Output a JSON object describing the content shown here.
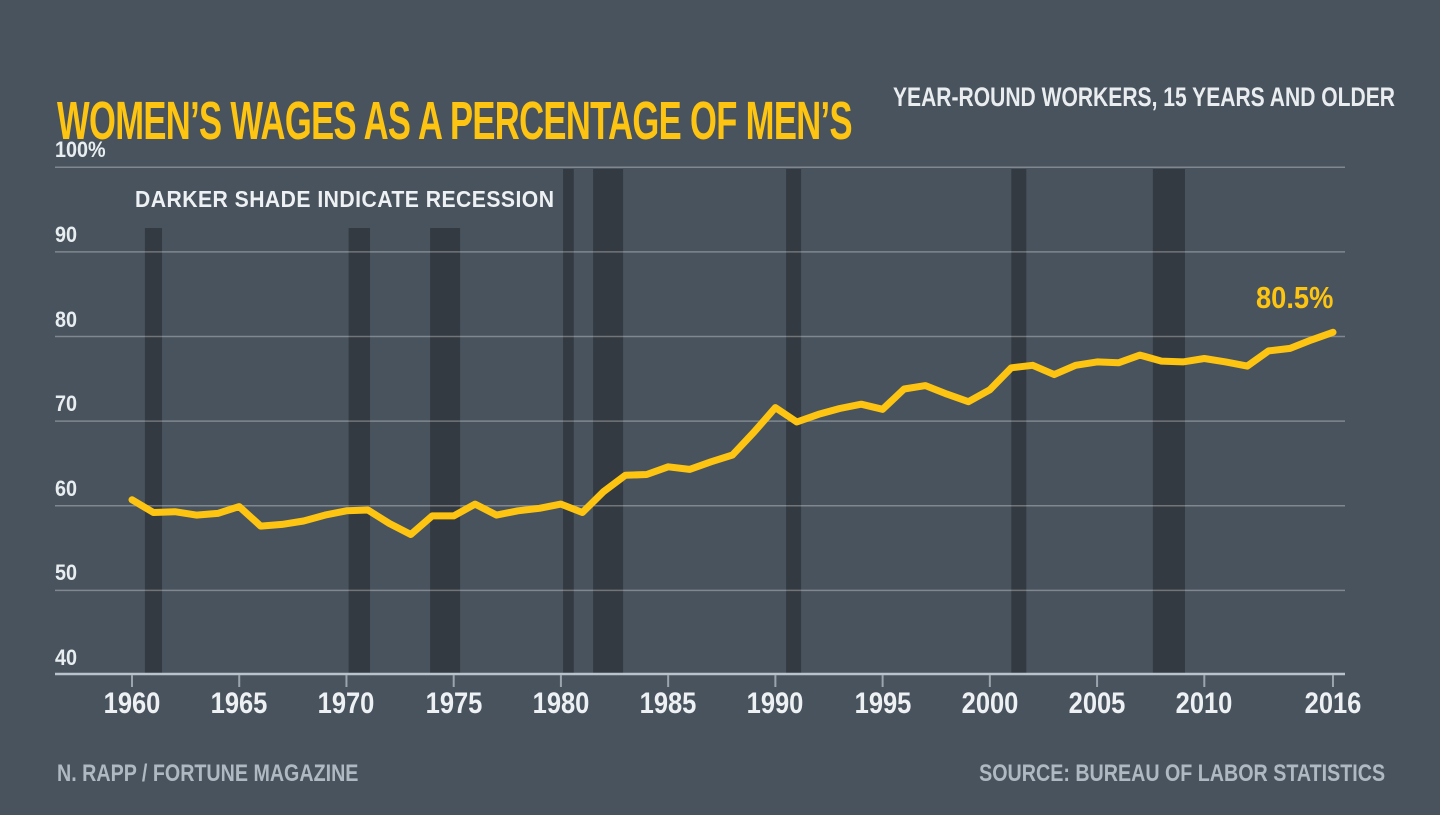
{
  "header": {
    "title": "WOMEN’S WAGES AS A PERCENTAGE OF MEN’S",
    "subtitle": "YEAR-ROUND WORKERS, 15 YEARS AND OLDER"
  },
  "footer": {
    "credit": "N. RAPP / FORTUNE MAGAZINE",
    "source": "SOURCE: BUREAU OF LABOR STATISTICS"
  },
  "colors": {
    "background": "#49535E",
    "title": "#FDC511",
    "line": "#FDC511",
    "recession_band": "#343A41",
    "gridline": "rgba(255,255,255,0.30)",
    "axis_line": "#B9C3CB",
    "tick": "#9AA5AD",
    "axis_text": "#EDF1F4",
    "footer_text": "#AFB9C1"
  },
  "chart_data": {
    "type": "line",
    "title": "WOMEN’S WAGES AS A PERCENTAGE OF MEN’S",
    "subtitle": "YEAR-ROUND WORKERS, 15 YEARS AND OLDER",
    "annotation": "DARKER SHADE INDICATE RECESSION",
    "end_label": "80.5%",
    "ylim": [
      40,
      100
    ],
    "xlim": [
      1960,
      2016
    ],
    "grid": "horizontal",
    "yticks": [
      {
        "value": 100,
        "label": "100%"
      },
      {
        "value": 90,
        "label": "90"
      },
      {
        "value": 80,
        "label": "80"
      },
      {
        "value": 70,
        "label": "70"
      },
      {
        "value": 60,
        "label": "60"
      },
      {
        "value": 50,
        "label": "50"
      },
      {
        "value": 40,
        "label": "40"
      }
    ],
    "xticks": [
      {
        "value": 1960,
        "label": "1960"
      },
      {
        "value": 1965,
        "label": "1965"
      },
      {
        "value": 1970,
        "label": "1970"
      },
      {
        "value": 1975,
        "label": "1975"
      },
      {
        "value": 1980,
        "label": "1980"
      },
      {
        "value": 1985,
        "label": "1985"
      },
      {
        "value": 1990,
        "label": "1990"
      },
      {
        "value": 1995,
        "label": "1995"
      },
      {
        "value": 2000,
        "label": "2000"
      },
      {
        "value": 2005,
        "label": "2005"
      },
      {
        "value": 2010,
        "label": "2010"
      },
      {
        "value": 2016,
        "label": "2016"
      }
    ],
    "x": [
      1960,
      1961,
      1962,
      1963,
      1964,
      1965,
      1966,
      1967,
      1968,
      1969,
      1970,
      1971,
      1972,
      1973,
      1974,
      1975,
      1976,
      1977,
      1978,
      1979,
      1980,
      1981,
      1982,
      1983,
      1984,
      1985,
      1986,
      1987,
      1988,
      1989,
      1990,
      1991,
      1992,
      1993,
      1994,
      1995,
      1996,
      1997,
      1998,
      1999,
      2000,
      2001,
      2002,
      2003,
      2004,
      2005,
      2006,
      2007,
      2008,
      2009,
      2010,
      2011,
      2012,
      2013,
      2014,
      2015,
      2016
    ],
    "values": [
      60.7,
      59.2,
      59.3,
      58.9,
      59.1,
      59.9,
      57.6,
      57.8,
      58.2,
      58.9,
      59.4,
      59.5,
      57.9,
      56.6,
      58.8,
      58.8,
      60.2,
      58.9,
      59.4,
      59.7,
      60.2,
      59.2,
      61.7,
      63.6,
      63.7,
      64.6,
      64.3,
      65.2,
      66.0,
      68.7,
      71.6,
      69.9,
      70.8,
      71.5,
      72.0,
      71.4,
      73.8,
      74.2,
      73.2,
      72.3,
      73.7,
      76.3,
      76.6,
      75.5,
      76.6,
      77.0,
      76.9,
      77.8,
      77.1,
      77.0,
      77.4,
      77.0,
      76.5,
      78.3,
      78.6,
      79.6,
      80.5
    ],
    "recessions": [
      {
        "start": 1960.6,
        "end": 1961.4,
        "below_annotation": true
      },
      {
        "start": 1970.1,
        "end": 1971.1,
        "below_annotation": true
      },
      {
        "start": 1973.9,
        "end": 1975.3,
        "below_annotation": true
      },
      {
        "start": 1980.1,
        "end": 1980.6,
        "below_annotation": false
      },
      {
        "start": 1981.5,
        "end": 1982.9,
        "below_annotation": false
      },
      {
        "start": 1990.5,
        "end": 1991.2,
        "below_annotation": false
      },
      {
        "start": 2001.0,
        "end": 2001.7,
        "below_annotation": false
      },
      {
        "start": 2007.6,
        "end": 2009.1,
        "below_annotation": false
      }
    ]
  }
}
